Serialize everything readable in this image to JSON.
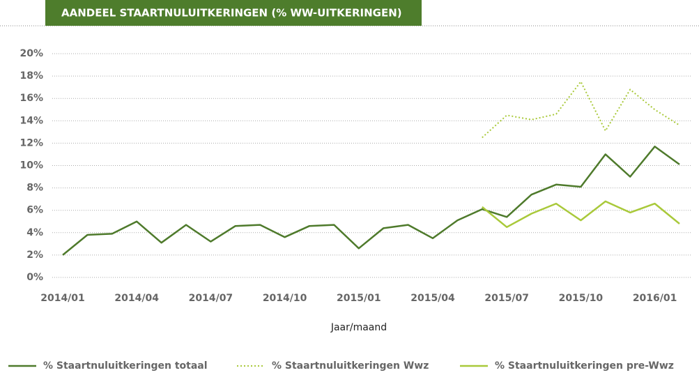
{
  "chart_data": {
    "type": "line",
    "title": "AANDEEL STAARTNULUITKERINGEN (% WW-UITKERINGEN)",
    "x_label": "Jaar/maand",
    "categories": [
      "2014/01",
      null,
      null,
      "2014/04",
      null,
      null,
      "2014/07",
      null,
      null,
      "2014/10",
      null,
      null,
      "2015/01",
      null,
      null,
      "2015/04",
      null,
      null,
      "2015/07",
      null,
      null,
      "2015/10",
      null,
      null,
      "2016/01",
      null
    ],
    "series": [
      {
        "name": "% Staartnuluitkeringen totaal",
        "color": "#4e7a2b",
        "style": "solid",
        "values": [
          2.0,
          3.8,
          3.9,
          5.0,
          3.1,
          4.7,
          3.2,
          4.6,
          4.7,
          3.6,
          4.6,
          4.7,
          2.6,
          4.4,
          4.7,
          3.5,
          5.1,
          6.1,
          5.4,
          7.4,
          8.3,
          8.1,
          11.0,
          9.0,
          11.7,
          10.1
        ]
      },
      {
        "name": "% Staartnuluitkeringen Wwz",
        "color": "#a9c93a",
        "style": "dotted",
        "values": [
          null,
          null,
          null,
          null,
          null,
          null,
          null,
          null,
          null,
          null,
          null,
          null,
          null,
          null,
          null,
          null,
          null,
          12.5,
          14.5,
          14.1,
          14.6,
          17.5,
          13.1,
          16.8,
          15.0,
          13.6
        ]
      },
      {
        "name": "% Staartnuluitkeringen pre-Wwz",
        "color": "#a9c93a",
        "style": "solid",
        "values": [
          null,
          null,
          null,
          null,
          null,
          null,
          null,
          null,
          null,
          null,
          null,
          null,
          null,
          null,
          null,
          null,
          null,
          6.3,
          4.5,
          5.7,
          6.6,
          5.1,
          6.8,
          5.8,
          6.6,
          4.8
        ]
      }
    ],
    "ylim": [
      0,
      20
    ],
    "yticks": [
      {
        "value": 0,
        "label": "0%"
      },
      {
        "value": 2,
        "label": "2%"
      },
      {
        "value": 4,
        "label": "4%"
      },
      {
        "value": 6,
        "label": "6%"
      },
      {
        "value": 8,
        "label": "8%"
      },
      {
        "value": 10,
        "label": "10%"
      },
      {
        "value": 12,
        "label": "12%"
      },
      {
        "value": 14,
        "label": "14%"
      },
      {
        "value": 16,
        "label": "16%"
      },
      {
        "value": 18,
        "label": "18%"
      },
      {
        "value": 20,
        "label": "20%"
      }
    ],
    "grid": true,
    "legend": "bottom"
  }
}
